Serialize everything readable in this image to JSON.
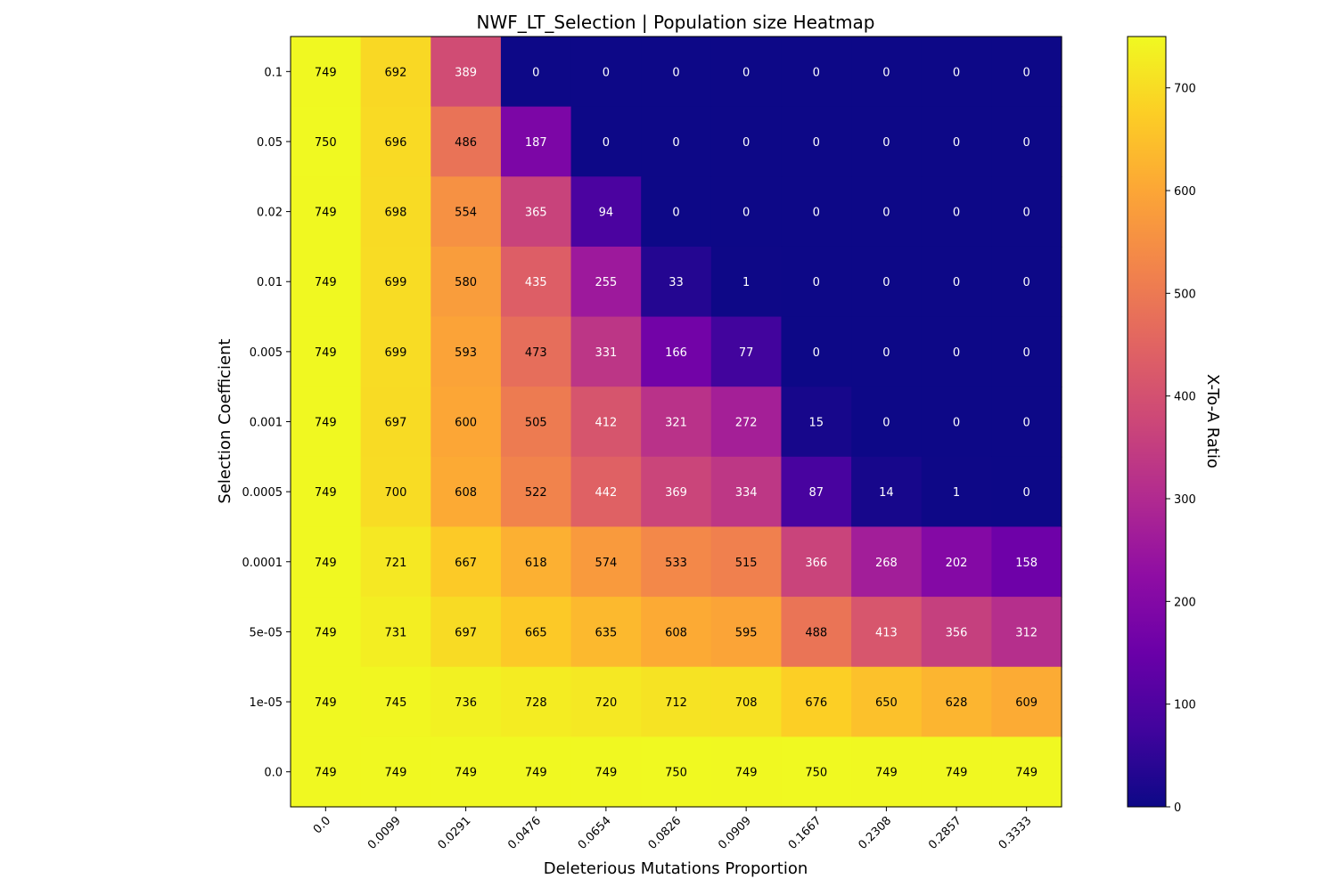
{
  "chart_data": {
    "type": "heatmap",
    "title": "NWF_LT_Selection | Population size Heatmap",
    "xlabel": "Deleterious Mutations Proportion",
    "ylabel": "Selection Coefficient",
    "x_categories": [
      "0.0",
      "0.0099",
      "0.0291",
      "0.0476",
      "0.0654",
      "0.0826",
      "0.0909",
      "0.1667",
      "0.2308",
      "0.2857",
      "0.3333"
    ],
    "y_categories": [
      "0.1",
      "0.05",
      "0.02",
      "0.01",
      "0.005",
      "0.001",
      "0.0005",
      "0.0001",
      "5e-05",
      "1e-05",
      "0.0"
    ],
    "values": [
      [
        749,
        692,
        389,
        0,
        0,
        0,
        0,
        0,
        0,
        0,
        0
      ],
      [
        750,
        696,
        486,
        187,
        0,
        0,
        0,
        0,
        0,
        0,
        0
      ],
      [
        749,
        698,
        554,
        365,
        94,
        0,
        0,
        0,
        0,
        0,
        0
      ],
      [
        749,
        699,
        580,
        435,
        255,
        33,
        1,
        0,
        0,
        0,
        0
      ],
      [
        749,
        699,
        593,
        473,
        331,
        166,
        77,
        0,
        0,
        0,
        0
      ],
      [
        749,
        697,
        600,
        505,
        412,
        321,
        272,
        15,
        0,
        0,
        0
      ],
      [
        749,
        700,
        608,
        522,
        442,
        369,
        334,
        87,
        14,
        1,
        0
      ],
      [
        749,
        721,
        667,
        618,
        574,
        533,
        515,
        366,
        268,
        202,
        158
      ],
      [
        749,
        731,
        697,
        665,
        635,
        608,
        595,
        488,
        413,
        356,
        312
      ],
      [
        749,
        745,
        736,
        728,
        720,
        712,
        708,
        676,
        650,
        628,
        609
      ],
      [
        749,
        749,
        749,
        749,
        749,
        750,
        749,
        750,
        749,
        749,
        749
      ]
    ],
    "colormap": "plasma",
    "value_range": [
      0,
      750
    ],
    "colorbar": {
      "label": "X-To-A Ratio",
      "ticks": [
        "0",
        "100",
        "200",
        "300",
        "400",
        "500",
        "600",
        "700"
      ],
      "tick_values": [
        0,
        100,
        200,
        300,
        400,
        500,
        600,
        700
      ]
    },
    "x_tick_rotation": 45,
    "grid": false,
    "legend": "none"
  }
}
